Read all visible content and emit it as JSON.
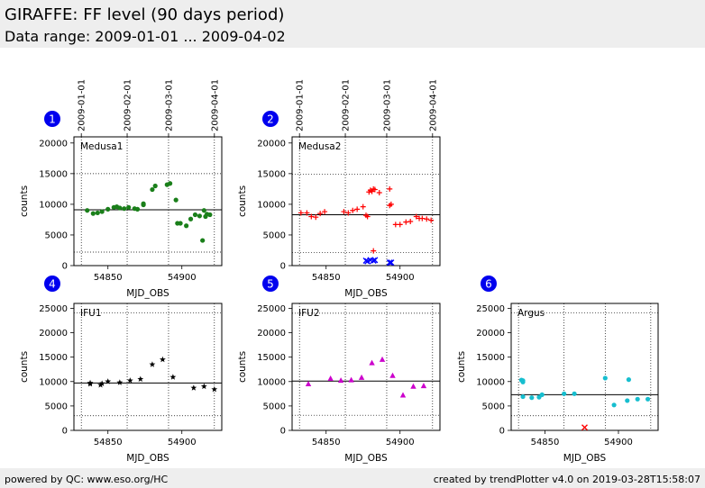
{
  "header": {
    "title": "GIRAFFE: FF level (90 days period)",
    "subtitle": "Data range: 2009-01-01 ... 2009-04-02"
  },
  "footer": {
    "left": "powered by QC: www.eso.org/HC",
    "right": "created by trendPlotter v4.0 on 2019-03-28T15:58:07"
  },
  "colors": {
    "header_bg": "#eeeeee",
    "badge": "#0000ee",
    "green": "#1a7f1a",
    "red": "#ff0000",
    "blue": "#0000ff",
    "black": "#000000",
    "magenta": "#cc00cc",
    "cyan": "#17becf"
  },
  "chart_data": [
    {
      "type": "scatter",
      "panel": "1",
      "name": "Medusa1",
      "xlabel": "MJD_OBS",
      "ylabel": "counts",
      "xlim": [
        54827,
        54927
      ],
      "ylim": [
        0,
        21000
      ],
      "xticks": [
        54850,
        54900
      ],
      "yticks": [
        0,
        5000,
        10000,
        15000,
        20000
      ],
      "date_ticks": [
        {
          "mjd": 54832,
          "label": "2009-01-01"
        },
        {
          "mjd": 54863,
          "label": "2009-02-01"
        },
        {
          "mjd": 54891,
          "label": "2009-03-01"
        },
        {
          "mjd": 54922,
          "label": "2009-04-01"
        }
      ],
      "mean": 9100,
      "band": [
        2200,
        15000
      ],
      "series": [
        {
          "marker": "circle",
          "color": "green",
          "points": [
            [
              54836,
              9000
            ],
            [
              54840,
              8500
            ],
            [
              54843,
              8600
            ],
            [
              54846,
              8800
            ],
            [
              54850,
              9200
            ],
            [
              54854,
              9500
            ],
            [
              54856,
              9600
            ],
            [
              54858,
              9400
            ],
            [
              54861,
              9300
            ],
            [
              54864,
              9500
            ],
            [
              54868,
              9300
            ],
            [
              54870,
              9200
            ],
            [
              54874,
              9900
            ],
            [
              54874,
              10100
            ],
            [
              54880,
              12400
            ],
            [
              54882,
              13000
            ],
            [
              54890,
              13200
            ],
            [
              54892,
              13400
            ],
            [
              54896,
              10700
            ],
            [
              54897,
              6900
            ],
            [
              54899,
              6900
            ],
            [
              54903,
              6500
            ],
            [
              54906,
              7600
            ],
            [
              54909,
              8300
            ],
            [
              54912,
              8100
            ],
            [
              54914,
              4100
            ],
            [
              54915,
              9000
            ],
            [
              54916,
              8000
            ],
            [
              54917,
              8400
            ],
            [
              54919,
              8300
            ]
          ]
        }
      ]
    },
    {
      "type": "scatter",
      "panel": "2",
      "name": "Medusa2",
      "xlabel": "MJD_OBS",
      "ylabel": "counts",
      "xlim": [
        54827,
        54927
      ],
      "ylim": [
        0,
        21000
      ],
      "xticks": [
        54850,
        54900
      ],
      "yticks": [
        0,
        5000,
        10000,
        15000,
        20000
      ],
      "date_ticks": [
        {
          "mjd": 54832,
          "label": "2009-01-01"
        },
        {
          "mjd": 54863,
          "label": "2009-02-01"
        },
        {
          "mjd": 54891,
          "label": "2009-03-01"
        },
        {
          "mjd": 54922,
          "label": "2009-04-01"
        }
      ],
      "mean": 8300,
      "band": [
        2100,
        14900
      ],
      "series": [
        {
          "marker": "plus",
          "color": "red",
          "points": [
            [
              54833,
              8600
            ],
            [
              54837,
              8600
            ],
            [
              54840,
              8000
            ],
            [
              54843,
              7900
            ],
            [
              54846,
              8500
            ],
            [
              54849,
              8800
            ],
            [
              54862,
              8800
            ],
            [
              54865,
              8600
            ],
            [
              54868,
              9000
            ],
            [
              54871,
              9200
            ],
            [
              54875,
              9600
            ],
            [
              54877,
              8200
            ],
            [
              54878,
              8000
            ],
            [
              54879,
              12000
            ],
            [
              54880,
              12300
            ],
            [
              54881,
              12100
            ],
            [
              54882,
              12500
            ],
            [
              54883,
              12400
            ],
            [
              54886,
              11900
            ],
            [
              54882,
              2400
            ],
            [
              54893,
              12500
            ],
            [
              54893,
              9800
            ],
            [
              54894,
              10000
            ],
            [
              54897,
              6700
            ],
            [
              54900,
              6700
            ],
            [
              54904,
              7100
            ],
            [
              54907,
              7200
            ],
            [
              54911,
              8000
            ],
            [
              54913,
              7700
            ],
            [
              54915,
              7700
            ],
            [
              54918,
              7600
            ],
            [
              54921,
              7400
            ]
          ]
        },
        {
          "marker": "x",
          "color": "blue",
          "points": [
            [
              54877,
              800
            ],
            [
              54878,
              700
            ],
            [
              54880,
              900
            ],
            [
              54882,
              800
            ],
            [
              54883,
              900
            ],
            [
              54893,
              500
            ],
            [
              54894,
              500
            ]
          ]
        }
      ]
    },
    {
      "type": "scatter",
      "panel": "4",
      "name": "IFU1",
      "xlabel": "MJD_OBS",
      "ylabel": "counts",
      "xlim": [
        54827,
        54927
      ],
      "ylim": [
        0,
        26000
      ],
      "xticks": [
        54850,
        54900
      ],
      "yticks": [
        0,
        5000,
        10000,
        15000,
        20000,
        25000
      ],
      "mean": 9700,
      "band": [
        3000,
        24100
      ],
      "series": [
        {
          "marker": "star",
          "color": "black",
          "points": [
            [
              54838,
              9700
            ],
            [
              54838,
              9500
            ],
            [
              54845,
              9300
            ],
            [
              54846,
              9600
            ],
            [
              54850,
              10000
            ],
            [
              54858,
              9800
            ],
            [
              54865,
              10200
            ],
            [
              54872,
              10500
            ],
            [
              54880,
              13500
            ],
            [
              54887,
              14500
            ],
            [
              54894,
              10900
            ],
            [
              54908,
              8700
            ],
            [
              54915,
              9000
            ],
            [
              54922,
              8400
            ]
          ]
        }
      ]
    },
    {
      "type": "scatter",
      "panel": "5",
      "name": "IFU2",
      "xlabel": "MJD_OBS",
      "ylabel": "counts",
      "xlim": [
        54827,
        54927
      ],
      "ylim": [
        0,
        26000
      ],
      "xticks": [
        54850,
        54900
      ],
      "yticks": [
        0,
        5000,
        10000,
        15000,
        20000,
        25000
      ],
      "mean": 10100,
      "band": [
        3100,
        24000
      ],
      "series": [
        {
          "marker": "triangle",
          "color": "magenta",
          "points": [
            [
              54838,
              9500
            ],
            [
              54853,
              10600
            ],
            [
              54860,
              10200
            ],
            [
              54867,
              10300
            ],
            [
              54874,
              10800
            ],
            [
              54881,
              13800
            ],
            [
              54888,
              14500
            ],
            [
              54895,
              11200
            ],
            [
              54902,
              7200
            ],
            [
              54909,
              9000
            ],
            [
              54916,
              9100
            ]
          ]
        }
      ]
    },
    {
      "type": "scatter",
      "panel": "6",
      "name": "Argus",
      "xlabel": "MJD_OBS",
      "ylabel": "counts",
      "xlim": [
        54827,
        54927
      ],
      "ylim": [
        0,
        26000
      ],
      "xticks": [
        54850,
        54900
      ],
      "yticks": [
        0,
        5000,
        10000,
        15000,
        20000,
        25000
      ],
      "mean": 7300,
      "band": [
        3000,
        24100
      ],
      "series": [
        {
          "marker": "circle",
          "color": "cyan",
          "points": [
            [
              54834,
              10300
            ],
            [
              54835,
              10200
            ],
            [
              54835,
              9900
            ],
            [
              54835,
              6900
            ],
            [
              54841,
              6700
            ],
            [
              54846,
              6800
            ],
            [
              54848,
              7300
            ],
            [
              54863,
              7500
            ],
            [
              54870,
              7500
            ],
            [
              54891,
              10700
            ],
            [
              54897,
              5200
            ],
            [
              54906,
              6100
            ],
            [
              54907,
              10400
            ],
            [
              54913,
              6400
            ],
            [
              54920,
              6400
            ]
          ]
        },
        {
          "marker": "x",
          "color": "red",
          "points": [
            [
              54877,
              600
            ]
          ]
        }
      ]
    }
  ]
}
